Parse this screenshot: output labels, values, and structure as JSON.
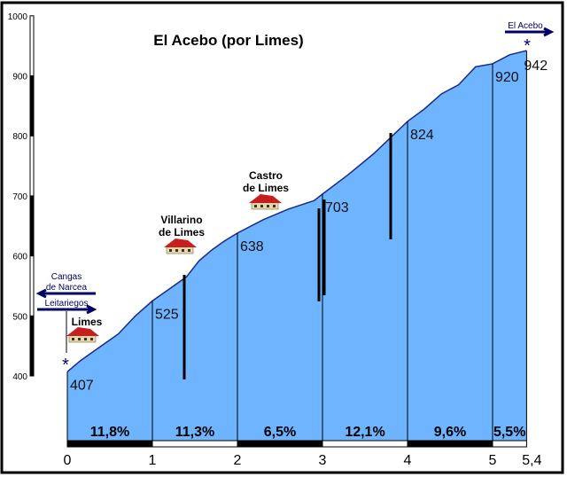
{
  "chart_data": {
    "type": "area",
    "title": "El Acebo (por Limes)",
    "xlabel": "",
    "ylabel": "",
    "xlim": [
      0,
      5.4
    ],
    "ylim": [
      400,
      1000
    ],
    "x_ticks": [
      "0",
      "1",
      "2",
      "3",
      "4",
      "5",
      "5,4"
    ],
    "x_tick_values": [
      0,
      1,
      2,
      3,
      4,
      5,
      5.4
    ],
    "y_ticks": [
      400,
      500,
      600,
      700,
      800,
      900,
      1000
    ],
    "profile": {
      "x": [
        0,
        0.15,
        0.3,
        0.45,
        0.6,
        0.8,
        1,
        1.2,
        1.4,
        1.55,
        1.7,
        1.85,
        2,
        2.3,
        2.6,
        2.9,
        3,
        3.3,
        3.6,
        4,
        4.2,
        4.4,
        4.6,
        4.8,
        5,
        5.2,
        5.4
      ],
      "y": [
        407,
        425,
        440,
        455,
        470,
        500,
        525,
        545,
        565,
        592,
        610,
        625,
        638,
        660,
        678,
        692,
        703,
        735,
        770,
        824,
        845,
        870,
        885,
        915,
        920,
        935,
        942
      ]
    },
    "km_elevations": [
      {
        "x": 0,
        "label": "407"
      },
      {
        "x": 1,
        "label": "525"
      },
      {
        "x": 2,
        "label": "638"
      },
      {
        "x": 3,
        "label": "703"
      },
      {
        "x": 4,
        "label": "824"
      },
      {
        "x": 5,
        "label": "920"
      },
      {
        "x": 5.4,
        "label": "942"
      }
    ],
    "gradients": [
      "11,8%",
      "11,3%",
      "6,5%",
      "12,1%",
      "9,6%",
      "5,5%"
    ],
    "places": [
      {
        "name1": "Limes",
        "name2": "",
        "x": 0.2
      },
      {
        "name1": "Villarino",
        "name2": "de Limes",
        "x": 1.35
      },
      {
        "name1": "Castro",
        "name2": "de Limes",
        "x": 2.35
      }
    ],
    "signs": {
      "left_top": "Cangas",
      "left_mid": "de Narcea",
      "right": "Leitariegos",
      "end": "El Acebo"
    },
    "colors": {
      "fill": "#6eb4fe",
      "line": "#1a2a8a",
      "arrow": "#000066",
      "house": "#c81e1e"
    }
  }
}
